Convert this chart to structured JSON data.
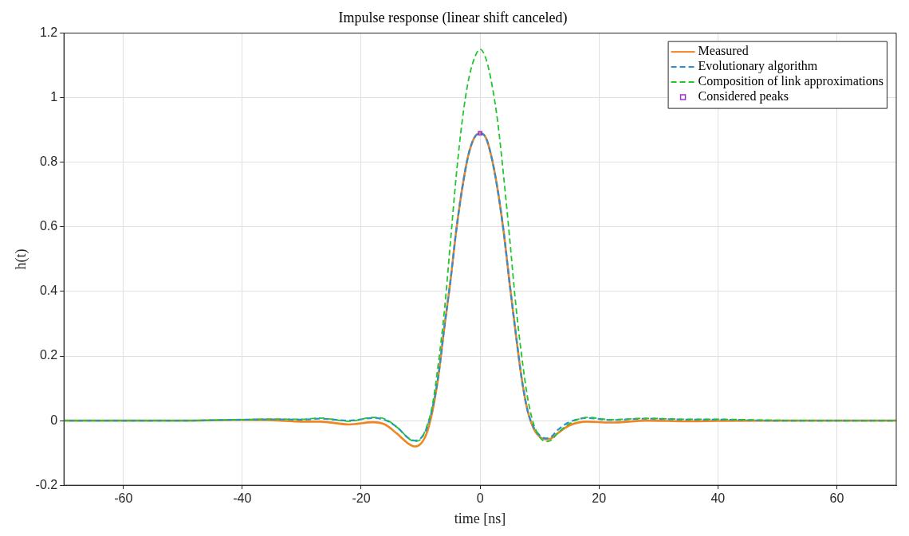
{
  "chart_data": {
    "type": "line",
    "title": "Impulse response (linear shift canceled)",
    "xlabel": "time [ns]",
    "ylabel": "h(t)",
    "x": [
      -70,
      -60,
      -50,
      -40,
      -35,
      -30,
      -27,
      -22,
      -18,
      -16,
      -14,
      -12,
      -11,
      -10,
      -9,
      -8,
      -7,
      -6,
      -5,
      -4,
      -3,
      -2,
      -1,
      0,
      1,
      2,
      3,
      4,
      5,
      6,
      7,
      8,
      9,
      10,
      11,
      12,
      13,
      15,
      18,
      22,
      28,
      35,
      40,
      50,
      60,
      70
    ],
    "series": [
      {
        "name": "Measured",
        "color": "#f28522",
        "line_style": "solid",
        "values": [
          0,
          0,
          0,
          0.002,
          0.001,
          -0.003,
          -0.003,
          -0.012,
          -0.005,
          -0.012,
          -0.04,
          -0.072,
          -0.08,
          -0.072,
          -0.04,
          0.03,
          0.14,
          0.29,
          0.43,
          0.59,
          0.72,
          0.82,
          0.875,
          0.89,
          0.875,
          0.81,
          0.71,
          0.58,
          0.42,
          0.27,
          0.13,
          0.03,
          -0.025,
          -0.05,
          -0.058,
          -0.055,
          -0.04,
          -0.015,
          -0.003,
          -0.006,
          0,
          -0.002,
          -0.001,
          0,
          0,
          0
        ]
      },
      {
        "name": "Evolutionary algorithm",
        "color": "#2a8fd6",
        "line_style": "dashed",
        "values": [
          0,
          0,
          0,
          0.003,
          0.004,
          0.003,
          0.006,
          0,
          0.008,
          0.002,
          -0.02,
          -0.055,
          -0.062,
          -0.055,
          -0.025,
          0.04,
          0.14,
          0.29,
          0.43,
          0.59,
          0.72,
          0.82,
          0.875,
          0.89,
          0.875,
          0.81,
          0.71,
          0.58,
          0.42,
          0.27,
          0.13,
          0.03,
          -0.02,
          -0.045,
          -0.055,
          -0.05,
          -0.03,
          -0.005,
          0.008,
          0.002,
          0.006,
          0.003,
          0.003,
          0,
          0,
          0
        ]
      },
      {
        "name": "Composition of link approximations",
        "color": "#22c52e",
        "line_style": "dashed",
        "values": [
          0,
          0,
          0,
          0.003,
          0.005,
          0.004,
          0.008,
          -0.002,
          0.01,
          0.005,
          -0.02,
          -0.055,
          -0.065,
          -0.058,
          -0.02,
          0.05,
          0.18,
          0.34,
          0.55,
          0.76,
          0.93,
          1.05,
          1.12,
          1.15,
          1.12,
          1.04,
          0.92,
          0.75,
          0.56,
          0.36,
          0.2,
          0.07,
          -0.01,
          -0.05,
          -0.065,
          -0.06,
          -0.04,
          -0.01,
          0.01,
          0.003,
          0.007,
          0.004,
          0.004,
          0.001,
          0,
          0
        ]
      },
      {
        "name": "Considered peaks",
        "type": "scatter",
        "marker": "square",
        "color": "#9b30d0",
        "x": [
          0
        ],
        "values": [
          0.89
        ]
      }
    ],
    "xlim": [
      -70,
      70
    ],
    "xticks": [
      -60,
      -40,
      -20,
      0,
      20,
      40,
      60
    ],
    "ylim": [
      -0.2,
      1.2
    ],
    "yticks": [
      -0.2,
      0,
      0.2,
      0.4,
      0.6,
      0.8,
      1,
      1.2
    ],
    "grid": true,
    "legend": "top right",
    "marker": "none"
  }
}
